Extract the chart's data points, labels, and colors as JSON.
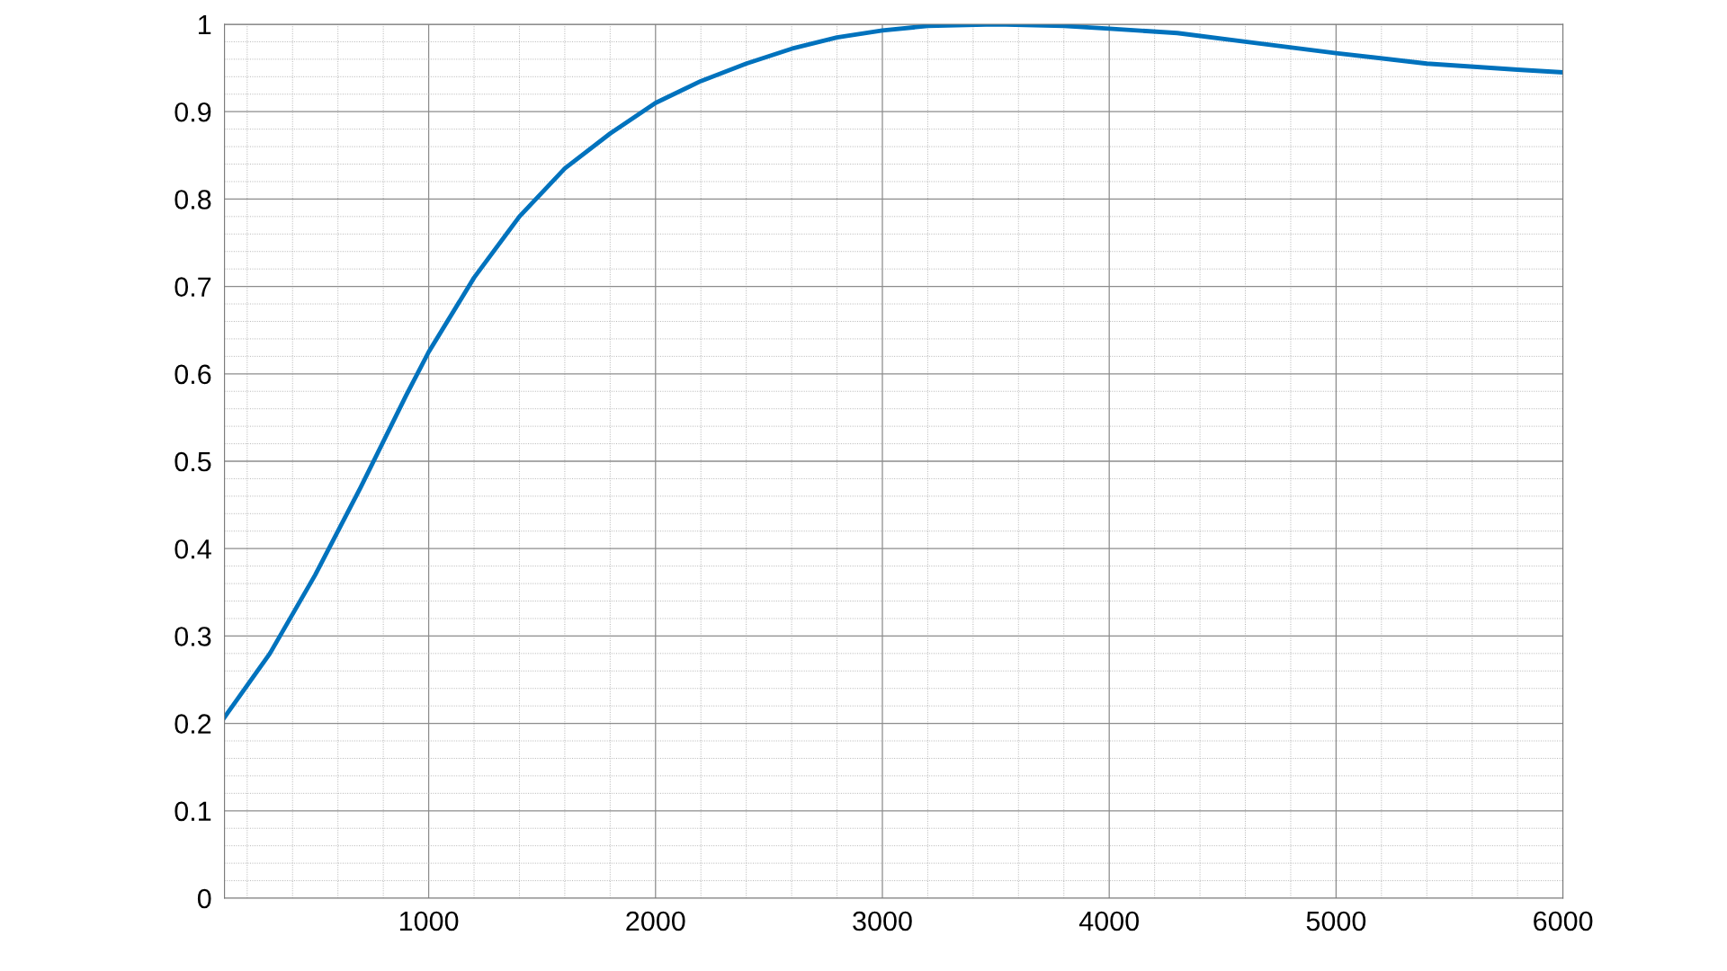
{
  "chart_data": {
    "type": "line",
    "x": [
      100,
      300,
      500,
      700,
      900,
      1000,
      1200,
      1400,
      1600,
      1800,
      2000,
      2200,
      2400,
      2600,
      2800,
      3000,
      3200,
      3500,
      3800,
      4000,
      4300,
      4600,
      5000,
      5400,
      5800,
      6000
    ],
    "series": [
      {
        "color": "#0072bd",
        "values": [
          0.207,
          0.28,
          0.37,
          0.47,
          0.575,
          0.625,
          0.71,
          0.78,
          0.835,
          0.875,
          0.91,
          0.935,
          0.955,
          0.972,
          0.985,
          0.993,
          0.998,
          1.0,
          0.998,
          0.995,
          0.99,
          0.98,
          0.967,
          0.955,
          0.948,
          0.945
        ]
      }
    ],
    "xlim": [
      100,
      6000
    ],
    "xticks": [
      1000,
      2000,
      3000,
      4000,
      5000,
      6000
    ],
    "ylim": [
      0,
      1
    ],
    "yticks": [
      0,
      0.1,
      0.2,
      0.3,
      0.4,
      0.5,
      0.6,
      0.7,
      0.8,
      0.9,
      1
    ],
    "grid": true,
    "legend": false,
    "marker": "none",
    "line_style": "solid"
  }
}
